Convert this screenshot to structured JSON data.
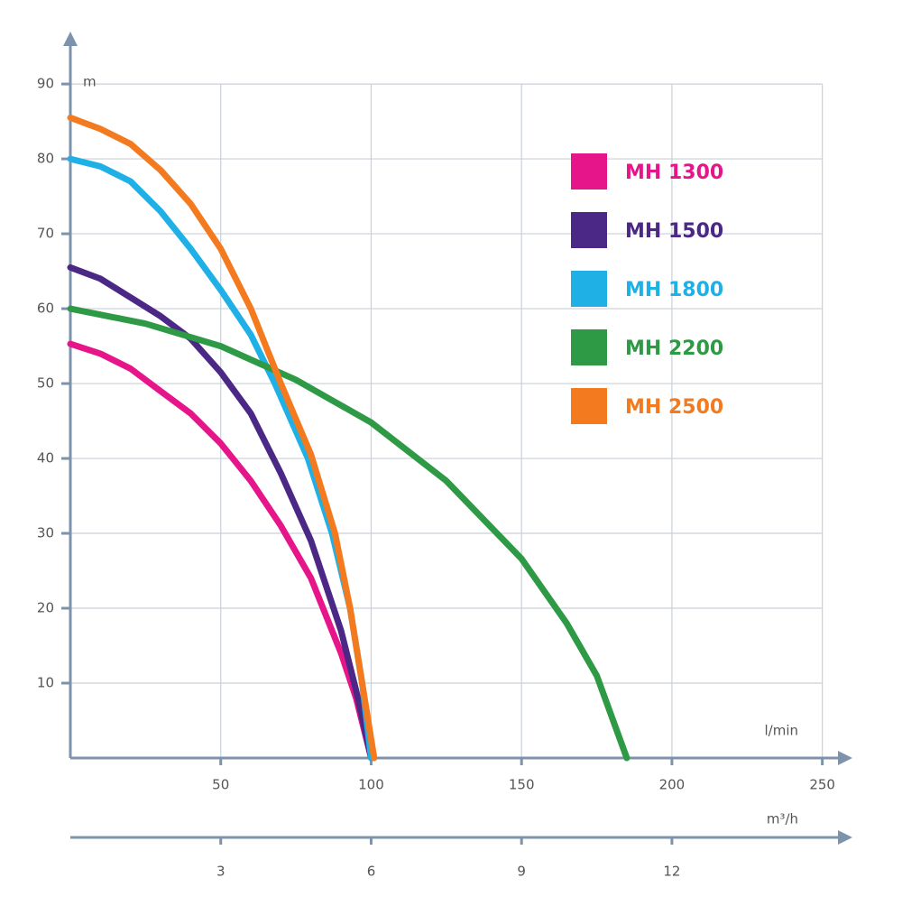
{
  "chart_data": {
    "type": "line",
    "x_label": "l/min",
    "y_label": "m",
    "x2_label": "m³/h",
    "xlim": [
      0,
      260
    ],
    "ylim": [
      0,
      97
    ],
    "x2lim": [
      0,
      15.6
    ],
    "xticks": [
      50,
      100,
      150,
      200,
      250
    ],
    "yticks": [
      10,
      20,
      30,
      40,
      50,
      60,
      70,
      80,
      90
    ],
    "x2ticks": [
      3,
      6,
      9,
      12
    ],
    "grid": true,
    "legend": "upper right",
    "series": [
      {
        "name": "MH 1300",
        "color": "#e6168a",
        "x": [
          0,
          10,
          20,
          30,
          40,
          50,
          60,
          70,
          80,
          90,
          95,
          100
        ],
        "values": [
          55.3,
          54,
          52,
          49,
          46,
          42,
          37,
          31,
          24,
          14,
          8,
          0
        ]
      },
      {
        "name": "MH 1500",
        "color": "#4b2886",
        "x": [
          0,
          10,
          20,
          30,
          40,
          50,
          60,
          70,
          80,
          90,
          95,
          100
        ],
        "values": [
          65.5,
          64,
          61.5,
          59,
          56,
          51.5,
          46,
          38,
          29,
          17,
          9,
          0
        ]
      },
      {
        "name": "MH 1800",
        "color": "#1fb0e6",
        "x": [
          0,
          10,
          20,
          30,
          40,
          50,
          60,
          68,
          79,
          87,
          93,
          97,
          100
        ],
        "values": [
          80,
          79,
          77,
          73,
          68,
          62.5,
          56.5,
          50,
          40,
          30,
          20,
          10,
          0
        ]
      },
      {
        "name": "MH 2200",
        "color": "#2e9a45",
        "x": [
          0,
          25,
          50,
          75,
          100,
          125,
          150,
          165,
          175,
          185
        ],
        "values": [
          60,
          58,
          55,
          50.5,
          44.8,
          37,
          26.6,
          18,
          11,
          0
        ]
      },
      {
        "name": "MH 2500",
        "color": "#f47a20",
        "x": [
          0,
          10,
          20,
          30,
          40,
          50,
          60,
          70,
          80,
          88,
          93,
          97,
          101
        ],
        "values": [
          85.5,
          84,
          82,
          78.5,
          74,
          68,
          60,
          50,
          40.5,
          30,
          20,
          10,
          0
        ]
      }
    ]
  }
}
